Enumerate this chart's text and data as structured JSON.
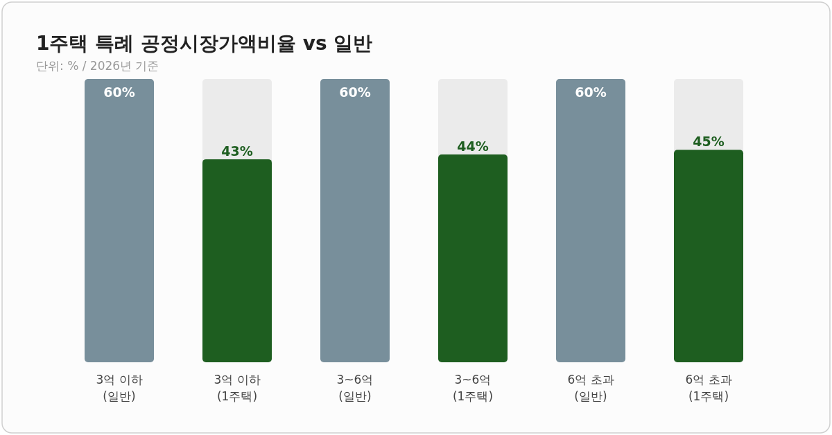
{
  "chart_data": {
    "type": "bar",
    "title": "1주택 특례 공정시장가액비율 vs 일반",
    "subtitle": "단위: % / 2026년 기준",
    "categories": [
      "3억 이하 (일반)",
      "3억 이하 (1주택)",
      "3~6억 (일반)",
      "3~6억 (1주택)",
      "6억 초과 (일반)",
      "6억 초과 (1주택)"
    ],
    "values": [
      60,
      43,
      60,
      44,
      60,
      45
    ],
    "colors": [
      "#788f9b",
      "#1e5e20",
      "#788f9b",
      "#1e5e20",
      "#788f9b",
      "#1e5e20"
    ],
    "value_labels": [
      "60%",
      "43%",
      "60%",
      "44%",
      "60%",
      "45%"
    ],
    "data_labels": true
  }
}
